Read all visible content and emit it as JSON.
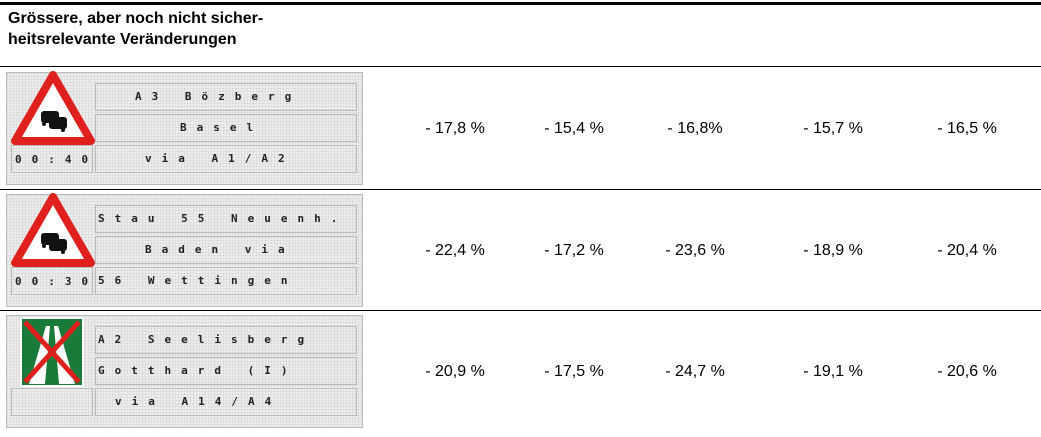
{
  "heading": [
    "Grössere, aber noch nicht sicher-",
    "heitsrelevante Veränderungen"
  ],
  "rows": [
    {
      "sign": {
        "icon": "warning",
        "time": "00:40",
        "lines": [
          "A3 Bözberg",
          "Basel",
          "via A1/A2"
        ]
      },
      "values": [
        "- 17,8 %",
        "- 15,4 %",
        "- 16,8%",
        "- 15,7 %",
        "- 16,5 %"
      ]
    },
    {
      "sign": {
        "icon": "warning",
        "time": "00:30",
        "lines": [
          "Stau 55 Neuenh.",
          "Baden via",
          "56 Wettingen"
        ]
      },
      "values": [
        "- 22,4 %",
        "- 17,2 %",
        "- 23,6 %",
        "- 18,9 %",
        "- 20,4 %"
      ]
    },
    {
      "sign": {
        "icon": "motorway-end",
        "lines": [
          "A2 Seelisberg",
          "Gotthard (I)",
          "via A14/A4"
        ]
      },
      "values": [
        "- 20,9 %",
        "- 17,5 %",
        "- 24,7 %",
        "- 19,1 %",
        "- 20,6 %"
      ]
    }
  ]
}
